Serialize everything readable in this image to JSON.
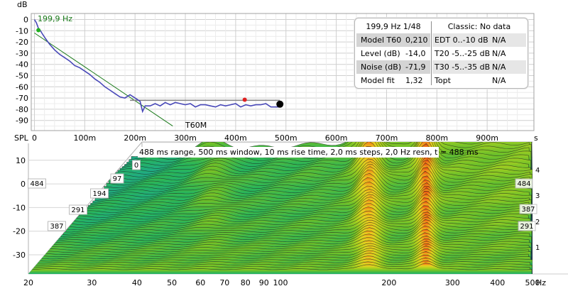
{
  "decay_plot": {
    "y_unit": "dB",
    "y_ticks": [
      "0",
      "-10",
      "-20",
      "-30",
      "-40",
      "-50",
      "-60",
      "-70",
      "-80",
      "-90"
    ],
    "x_unit": "s",
    "x_ticks": [
      "0",
      "100m",
      "200m",
      "300m",
      "400m",
      "500m",
      "600m",
      "700m",
      "800m",
      "900m"
    ],
    "cursor_freq": "199,9 Hz",
    "t60_label": "T60M",
    "colors": {
      "decay": "#4848b8",
      "fit": "#1a7a1a",
      "noise": "#888888",
      "start_marker": "#20b020",
      "knee_marker": "#e02020",
      "end_marker": "#000000"
    }
  },
  "chart_data": [
    {
      "type": "line",
      "title": "",
      "xlabel": "s",
      "ylabel": "dB",
      "xlim": [
        0,
        0.97
      ],
      "ylim": [
        -95,
        3
      ],
      "series": [
        {
          "x": [
            0.0,
            0.004,
            0.008,
            0.012,
            0.016,
            0.022,
            0.03,
            0.04,
            0.05,
            0.06,
            0.07,
            0.08,
            0.09,
            0.1,
            0.11,
            0.12,
            0.13,
            0.14,
            0.15,
            0.16,
            0.17,
            0.18,
            0.19,
            0.2,
            0.21,
            0.215,
            0.22,
            0.23,
            0.24,
            0.25,
            0.26,
            0.27,
            0.28,
            0.29,
            0.3,
            0.31,
            0.32,
            0.33,
            0.34,
            0.35,
            0.36,
            0.37,
            0.38,
            0.39,
            0.4,
            0.41,
            0.42,
            0.43,
            0.44,
            0.45,
            0.46,
            0.47,
            0.48,
            0.488
          ],
          "y": [
            0,
            -3,
            -8,
            -10,
            -13,
            -17,
            -22,
            -27,
            -31,
            -34,
            -37,
            -41,
            -43,
            -46,
            -49,
            -53,
            -56,
            -60,
            -63,
            -66,
            -69,
            -70,
            -67,
            -70,
            -73,
            -82,
            -77,
            -77,
            -75,
            -77,
            -74,
            -76,
            -74,
            -75,
            -76,
            -75,
            -78,
            -76,
            -76,
            -77,
            -78,
            -76,
            -77,
            -76,
            -75,
            -78,
            -76,
            -77,
            -76,
            -76,
            -75,
            -78,
            -78,
            -78
          ]
        },
        {
          "x": [
            0.0,
            0.275
          ],
          "y": [
            -12,
            -95
          ]
        },
        {
          "x": [
            0.19,
            0.488
          ],
          "y": [
            -72,
            -72
          ]
        }
      ]
    },
    {
      "type": "area",
      "title": "488 ms range, 500 ms window, 10 ms rise time, 2,0 ms steps,  2,0 Hz resn, t = 488 ms",
      "xlabel": "Hz",
      "ylabel": "SPL",
      "xscale": "log",
      "xlim": [
        20,
        500
      ],
      "ylim": [
        -35,
        15
      ],
      "x_ticks": [
        20,
        30,
        40,
        50,
        60,
        70,
        80,
        90,
        100,
        200,
        300,
        400,
        500
      ],
      "y_ticks": [
        10,
        0,
        -10,
        -20,
        -30
      ],
      "time_labels": [
        "0",
        "97",
        "194",
        "291",
        "387",
        "484"
      ]
    }
  ],
  "stats": {
    "header_left": "199,9 Hz 1/48",
    "header_right": "Classic: No data",
    "rows": [
      {
        "label": "Model T60",
        "value": "0,210",
        "r_label": "EDT  0..-10 dB",
        "r_value": "N/A"
      },
      {
        "label": "Level (dB)",
        "value": "-14,0",
        "r_label": "T20 -5..-25 dB",
        "r_value": "N/A"
      },
      {
        "label": "Noise (dB)",
        "value": "-71,9",
        "r_label": "T30 -5..-35 dB",
        "r_value": "N/A"
      },
      {
        "label": "Model fit",
        "value": "1,32",
        "r_label": "Topt",
        "r_value": "N/A"
      }
    ]
  },
  "waterfall": {
    "y_unit": "SPL",
    "y_ticks": [
      "10",
      "0",
      "-10",
      "-20",
      "-30"
    ],
    "x_unit": "Hz",
    "x_ticks": [
      "20",
      "30",
      "40",
      "50",
      "60",
      "70",
      "80",
      "90",
      "100",
      "200",
      "300",
      "400",
      "500"
    ],
    "time_labels": [
      "0",
      "97",
      "194",
      "291",
      "387",
      "484"
    ],
    "right_time_labels": [
      "484",
      "387",
      "291"
    ],
    "right_scale": [
      "4",
      "3",
      "2",
      "1"
    ],
    "info": "488 ms range, 500 ms window, 10 ms rise time, 2,0 ms steps,  2,0 Hz resn, t = 488 ms"
  }
}
